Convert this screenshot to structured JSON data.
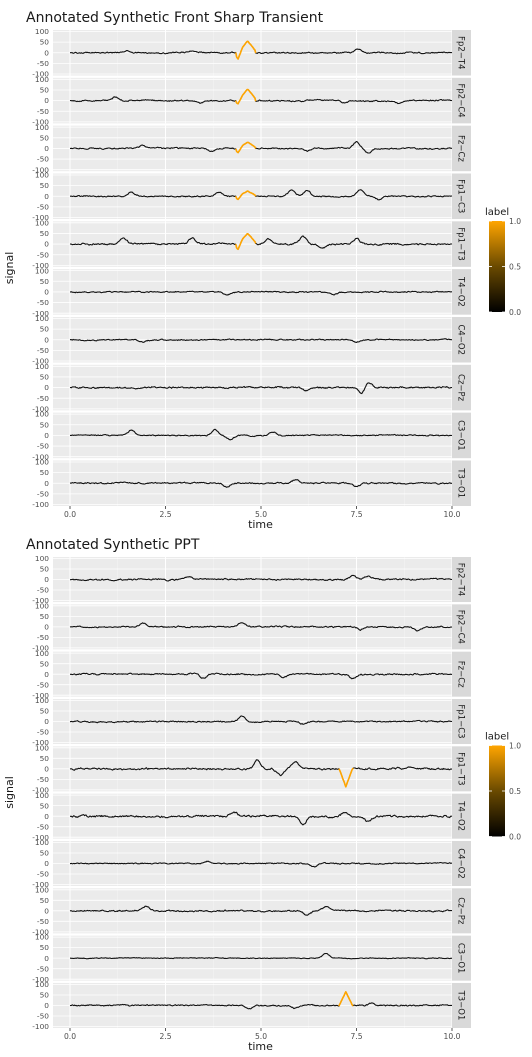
{
  "chart_data": [
    {
      "type": "line",
      "title": "Annotated Synthetic Front Sharp Transient",
      "xlabel": "time",
      "ylabel": "signal",
      "xlim": [
        0,
        10
      ],
      "ylim": [
        -100,
        100
      ],
      "x_ticks": [
        "0.0",
        "2.5",
        "5.0",
        "7.5",
        "10.0"
      ],
      "x_tick_values": [
        0,
        2.5,
        5,
        7.5,
        10
      ],
      "y_ticks": [
        "100",
        "50",
        "0",
        "-50",
        "-100"
      ],
      "y_tick_values": [
        100,
        50,
        0,
        -50,
        -100
      ],
      "grid": true,
      "facets": [
        "Fp2−T4",
        "Fp2−C4",
        "Fz−Cz",
        "Fp1−C3",
        "Fp1−T3",
        "T4−O2",
        "C4−O2",
        "Cz−Pz",
        "C3−O1",
        "T3−O1"
      ],
      "annotation": {
        "start": 4.35,
        "end": 4.85,
        "peak_time": 4.65,
        "peak_values": [
          55,
          55,
          30,
          25,
          50,
          0,
          0,
          0,
          0,
          0
        ],
        "trough_values": [
          -30,
          -15,
          -20,
          -15,
          -25,
          0,
          0,
          0,
          0,
          0
        ]
      },
      "features": [
        [
          [
            1.5,
            10
          ],
          [
            3.2,
            8
          ],
          [
            7.55,
            20
          ]
        ],
        [
          [
            1.2,
            18
          ],
          [
            3.4,
            -12
          ],
          [
            7.2,
            -10
          ],
          [
            8.6,
            -12
          ]
        ],
        [
          [
            1.9,
            12
          ],
          [
            3.7,
            -15
          ],
          [
            6.2,
            -12
          ],
          [
            7.5,
            30
          ],
          [
            7.8,
            -22
          ]
        ],
        [
          [
            1.6,
            18
          ],
          [
            3.9,
            18
          ],
          [
            5.8,
            30
          ],
          [
            6.2,
            25
          ],
          [
            7.6,
            30
          ],
          [
            8.1,
            -18
          ]
        ],
        [
          [
            1.4,
            28
          ],
          [
            3.2,
            28
          ],
          [
            5.2,
            22
          ],
          [
            6.1,
            35
          ],
          [
            6.6,
            -18
          ],
          [
            7.5,
            25
          ]
        ],
        [
          [
            4.1,
            -15
          ],
          [
            6.9,
            -12
          ]
        ],
        [
          [
            1.9,
            -10
          ],
          [
            7.5,
            -12
          ]
        ],
        [
          [
            6.2,
            -12
          ],
          [
            7.8,
            28
          ],
          [
            7.65,
            -30
          ]
        ],
        [
          [
            1.6,
            25
          ],
          [
            3.8,
            28
          ],
          [
            4.2,
            -18
          ],
          [
            5.3,
            18
          ]
        ],
        [
          [
            4.1,
            -20
          ],
          [
            5.9,
            18
          ],
          [
            7.5,
            -15
          ]
        ]
      ],
      "noise": [
        8,
        8,
        8,
        8,
        10,
        7,
        7,
        10,
        7,
        8
      ],
      "legend": {
        "title": "label",
        "placement": "right",
        "ticks": [
          "1.0",
          "0.5",
          "0.0"
        ],
        "tick_values": [
          1,
          0.5,
          0
        ],
        "color_low": "#000000",
        "color_high": "#FFA500"
      }
    },
    {
      "type": "line",
      "title": "Annotated Synthetic PPT",
      "xlabel": "time",
      "ylabel": "signal",
      "xlim": [
        0,
        10
      ],
      "ylim": [
        -100,
        100
      ],
      "x_ticks": [
        "0.0",
        "2.5",
        "5.0",
        "7.5",
        "10.0"
      ],
      "x_tick_values": [
        0,
        2.5,
        5,
        7.5,
        10
      ],
      "y_ticks": [
        "100",
        "50",
        "0",
        "-50",
        "-100"
      ],
      "y_tick_values": [
        100,
        50,
        0,
        -50,
        -100
      ],
      "grid": true,
      "facets": [
        "Fp2−T4",
        "Fp2−C4",
        "Fz−Cz",
        "Fp1−C3",
        "Fp1−T3",
        "T4−O2",
        "C4−O2",
        "Cz−Pz",
        "C3−O1",
        "T3−O1"
      ],
      "annotation": {
        "start": 7.05,
        "end": 7.4,
        "peak_time": 7.22,
        "peak_values": [
          0,
          0,
          0,
          0,
          -85,
          0,
          0,
          0,
          0,
          65
        ],
        "trough_values": [
          0,
          0,
          0,
          0,
          0,
          0,
          0,
          0,
          0,
          0
        ]
      },
      "features": [
        [
          [
            3.1,
            15
          ],
          [
            7.4,
            20
          ],
          [
            7.8,
            15
          ]
        ],
        [
          [
            1.9,
            18
          ],
          [
            4.5,
            18
          ],
          [
            7.6,
            -15
          ],
          [
            9.1,
            -18
          ]
        ],
        [
          [
            3.5,
            -20
          ],
          [
            5.6,
            -15
          ],
          [
            7.4,
            -18
          ]
        ],
        [
          [
            4.5,
            25
          ],
          [
            6.1,
            -12
          ]
        ],
        [
          [
            4.9,
            40
          ],
          [
            5.5,
            -30
          ],
          [
            5.9,
            30
          ],
          [
            8.9,
            12
          ]
        ],
        [
          [
            4.3,
            20
          ],
          [
            6.1,
            -35
          ],
          [
            7.2,
            22
          ],
          [
            7.8,
            -25
          ]
        ],
        [
          [
            3.6,
            12
          ],
          [
            6.4,
            -18
          ]
        ],
        [
          [
            2.0,
            18
          ],
          [
            6.2,
            -20
          ],
          [
            6.7,
            22
          ]
        ],
        [
          [
            6.7,
            22
          ]
        ],
        [
          [
            4.7,
            -15
          ],
          [
            5.9,
            -15
          ],
          [
            7.9,
            12
          ]
        ]
      ],
      "noise": [
        9,
        8,
        9,
        8,
        11,
        12,
        7,
        9,
        5,
        8
      ],
      "legend": {
        "title": "label",
        "placement": "right",
        "ticks": [
          "1.0",
          "0.5",
          "0.0"
        ],
        "tick_values": [
          1,
          0.5,
          0
        ],
        "color_low": "#000000",
        "color_high": "#FFA500"
      }
    }
  ]
}
